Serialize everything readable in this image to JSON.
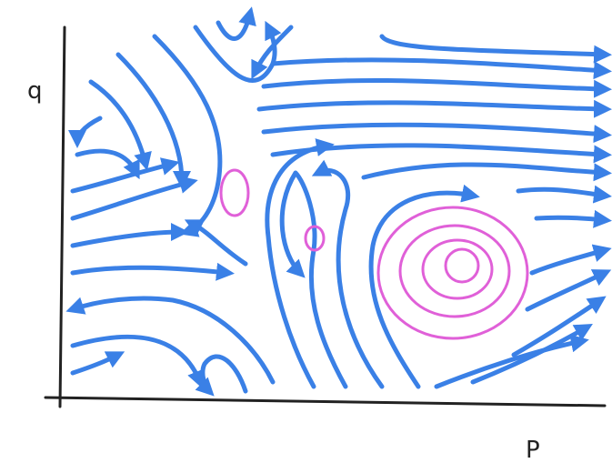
{
  "axes": {
    "y_label": "q",
    "x_label": "P"
  }
}
